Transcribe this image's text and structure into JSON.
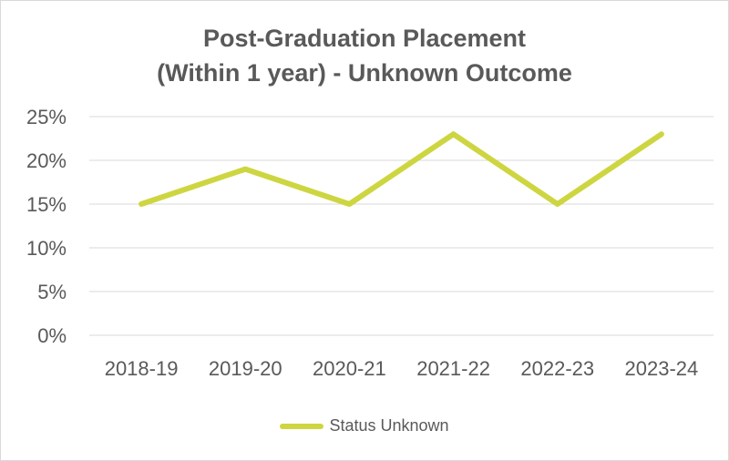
{
  "chart_data": {
    "type": "line",
    "title_lines": [
      "Post-Graduation Placement",
      "(Within 1 year) - Unknown Outcome"
    ],
    "categories": [
      "2018-19",
      "2019-20",
      "2020-21",
      "2021-22",
      "2022-23",
      "2023-24"
    ],
    "series": [
      {
        "name": "Status Unknown",
        "values": [
          0.15,
          0.19,
          0.15,
          0.23,
          0.15,
          0.23
        ],
        "color": "#cdd640"
      }
    ],
    "y_ticks": [
      0,
      0.05,
      0.1,
      0.15,
      0.2,
      0.25
    ],
    "y_tick_labels": [
      "0%",
      "5%",
      "10%",
      "15%",
      "20%",
      "25%"
    ],
    "ylim": [
      0,
      0.25
    ],
    "grid": true,
    "legend_position": "bottom",
    "xlabel": "",
    "ylabel": ""
  }
}
